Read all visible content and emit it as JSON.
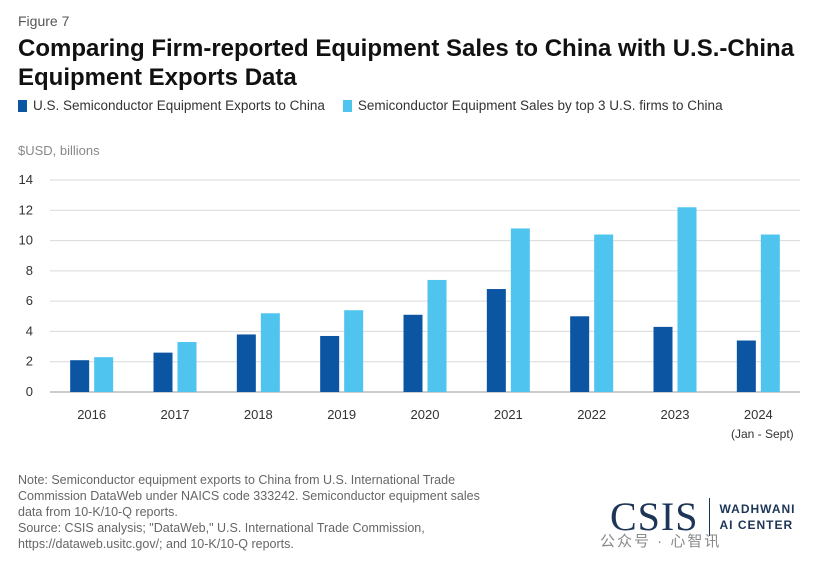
{
  "figure_label": "Figure 7",
  "title": "Comparing Firm-reported Equipment Sales to China with U.S.-China Equipment Exports Data",
  "unit_label": "$USD, billions",
  "colors": {
    "exports": "#0b55a3",
    "sales": "#4ec4ef",
    "grid": "#d9d9d9",
    "axis": "#999999"
  },
  "chart_data": {
    "type": "bar",
    "title": "Comparing Firm-reported Equipment Sales to China with U.S.-China Equipment Exports Data",
    "ylabel": "$USD, billions",
    "xlabel": "",
    "categories": [
      "2016",
      "2017",
      "2018",
      "2019",
      "2020",
      "2021",
      "2022",
      "2023",
      "2024"
    ],
    "category_sublabels": [
      "",
      "",
      "",
      "",
      "",
      "",
      "",
      "",
      "(Jan - Sept)"
    ],
    "ylim": [
      0,
      14
    ],
    "yticks": [
      0,
      2,
      4,
      6,
      8,
      10,
      12,
      14
    ],
    "grid": true,
    "legend_position": "top-left",
    "series": [
      {
        "name": "U.S. Semiconductor Equipment Exports to China",
        "values": [
          2.1,
          2.6,
          3.8,
          3.7,
          5.1,
          6.8,
          5.0,
          4.3,
          3.4
        ]
      },
      {
        "name": "Semiconductor Equipment Sales by top 3 U.S. firms to China",
        "values": [
          2.3,
          3.3,
          5.2,
          5.4,
          7.4,
          10.8,
          10.4,
          12.2,
          10.4
        ]
      }
    ]
  },
  "note": {
    "text": "Note: Semiconductor equipment exports to China from U.S. International Trade Commission DataWeb under NAICS code 333242. Semiconductor equipment sales data from 10-K/10-Q reports.",
    "source": "Source: CSIS analysis; \"DataWeb,\" U.S. International Trade Commission, https://dataweb.usitc.gov/; and 10-K/10-Q reports."
  },
  "logo": {
    "main": "CSIS",
    "line1": "WADHWANI",
    "line2": "AI CENTER"
  },
  "watermark": "公众号 · 心智讯"
}
